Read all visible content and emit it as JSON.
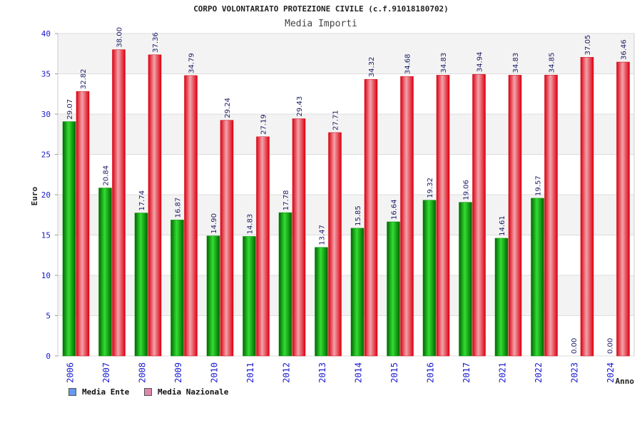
{
  "chart_data": {
    "type": "bar",
    "title": "CORPO VOLONTARIATO PROTEZIONE CIVILE (c.f.91018180702)",
    "subtitle": "Media Importi",
    "xlabel": "Anno",
    "ylabel": "Euro",
    "ylim": [
      0,
      40
    ],
    "yticks": [
      0,
      5,
      10,
      15,
      20,
      25,
      30,
      35,
      40
    ],
    "categories": [
      "2006",
      "2007",
      "2008",
      "2009",
      "2010",
      "2011",
      "2012",
      "2013",
      "2014",
      "2015",
      "2016",
      "2017",
      "2021",
      "2022",
      "2023",
      "2024"
    ],
    "series": [
      {
        "name": "Media Ente",
        "color": "#00c000",
        "legend_color": "#6699ee",
        "values": [
          29.07,
          20.84,
          17.74,
          16.87,
          14.9,
          14.83,
          17.78,
          13.47,
          15.85,
          16.64,
          19.32,
          19.06,
          14.61,
          19.57,
          0.0,
          0.0
        ],
        "labels": [
          "29.07",
          "20.84",
          "17.74",
          "16.87",
          "14.90",
          "14.83",
          "17.78",
          "13.47",
          "15.85",
          "16.64",
          "19.32",
          "19.06",
          "14.61",
          "19.57",
          "0.00",
          "0.00"
        ]
      },
      {
        "name": "Media Nazionale",
        "color": "#ee1122",
        "legend_color": "#dd88aa",
        "values": [
          32.82,
          38.0,
          37.36,
          34.79,
          29.24,
          27.19,
          29.43,
          27.71,
          34.32,
          34.68,
          34.83,
          34.94,
          34.83,
          34.85,
          37.05,
          36.46
        ],
        "labels": [
          "32.82",
          "38.00",
          "37.36",
          "34.79",
          "29.24",
          "27.19",
          "29.43",
          "27.71",
          "34.32",
          "34.68",
          "34.83",
          "34.94",
          "34.83",
          "34.85",
          "37.05",
          "36.46"
        ]
      }
    ],
    "grid": true,
    "legend_position": "bottom-left"
  }
}
